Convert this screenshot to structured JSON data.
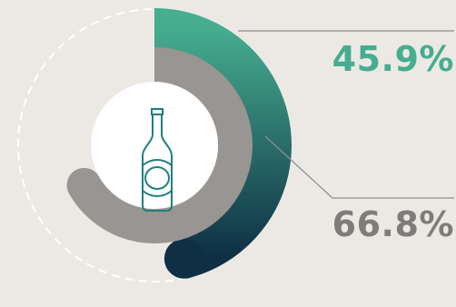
{
  "colors": {
    "background": "#ece9e5",
    "outer_ring_top": "#46ad8f",
    "outer_ring_bottom": "#0e2f44",
    "inner_ring": "#999592",
    "center_circle": "#ffffff",
    "guide_dashed": "#ffffff",
    "leader_lines": "#8f8f8f",
    "icon_stroke": "#1f7f7f"
  },
  "icon": "beer-bottle-icon",
  "chart_data": {
    "type": "radial-bar",
    "unit": "%",
    "max": 100,
    "series": [
      {
        "label": "45.9%",
        "value": 45.9,
        "ring": "outer",
        "color": "#46ad8f"
      },
      {
        "label": "66.8%",
        "value": 66.8,
        "ring": "inner",
        "color": "#999592"
      }
    ]
  }
}
